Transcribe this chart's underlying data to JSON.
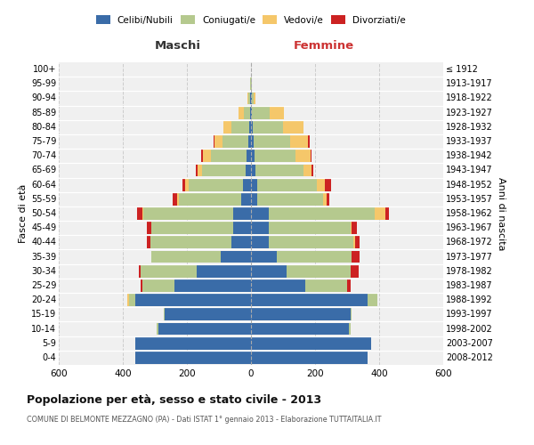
{
  "age_groups": [
    "0-4",
    "5-9",
    "10-14",
    "15-19",
    "20-24",
    "25-29",
    "30-34",
    "35-39",
    "40-44",
    "45-49",
    "50-54",
    "55-59",
    "60-64",
    "65-69",
    "70-74",
    "75-79",
    "80-84",
    "85-89",
    "90-94",
    "95-99",
    "100+"
  ],
  "birth_years": [
    "2008-2012",
    "2003-2007",
    "1998-2002",
    "1993-1997",
    "1988-1992",
    "1983-1987",
    "1978-1982",
    "1973-1977",
    "1968-1972",
    "1963-1967",
    "1958-1962",
    "1953-1957",
    "1948-1952",
    "1943-1947",
    "1938-1942",
    "1933-1937",
    "1928-1932",
    "1923-1927",
    "1918-1922",
    "1913-1917",
    "≤ 1912"
  ],
  "maschi": {
    "celibi": [
      360,
      360,
      290,
      270,
      360,
      240,
      170,
      95,
      60,
      55,
      55,
      30,
      25,
      18,
      15,
      8,
      5,
      3,
      2,
      0,
      0
    ],
    "coniugati": [
      0,
      0,
      5,
      3,
      20,
      100,
      175,
      215,
      255,
      255,
      280,
      195,
      170,
      135,
      110,
      80,
      55,
      20,
      5,
      2,
      0
    ],
    "vedovi": [
      0,
      0,
      0,
      0,
      5,
      0,
      0,
      0,
      0,
      0,
      5,
      5,
      10,
      15,
      25,
      25,
      25,
      15,
      3,
      0,
      0
    ],
    "divorziati": [
      0,
      0,
      0,
      0,
      0,
      5,
      5,
      0,
      10,
      15,
      15,
      15,
      10,
      5,
      5,
      5,
      0,
      0,
      0,
      0,
      0
    ]
  },
  "femmine": {
    "nubili": [
      365,
      375,
      305,
      310,
      365,
      170,
      110,
      80,
      55,
      55,
      55,
      20,
      20,
      15,
      10,
      8,
      5,
      3,
      2,
      0,
      0
    ],
    "coniugate": [
      0,
      0,
      5,
      5,
      30,
      130,
      200,
      235,
      265,
      255,
      330,
      205,
      185,
      150,
      130,
      115,
      95,
      55,
      5,
      2,
      0
    ],
    "vedove": [
      0,
      0,
      0,
      0,
      0,
      0,
      0,
      0,
      5,
      5,
      35,
      10,
      25,
      25,
      45,
      55,
      65,
      45,
      8,
      2,
      0
    ],
    "divorziate": [
      0,
      0,
      0,
      0,
      0,
      10,
      25,
      25,
      15,
      15,
      10,
      10,
      20,
      5,
      5,
      5,
      0,
      0,
      0,
      0,
      0
    ]
  },
  "colors": {
    "celibi": "#3a6ca8",
    "coniugati": "#b5c98e",
    "vedovi": "#f5c76a",
    "divorziati": "#cc2222"
  },
  "xlim": 600,
  "title": "Popolazione per età, sesso e stato civile - 2013",
  "subtitle": "COMUNE DI BELMONTE MEZZAGNO (PA) - Dati ISTAT 1° gennaio 2013 - Elaborazione TUTTAITALIA.IT",
  "xlabel_left": "Maschi",
  "xlabel_right": "Femmine",
  "ylabel_left": "Fasce di età",
  "ylabel_right": "Anni di nascita",
  "legend_labels": [
    "Celibi/Nubili",
    "Coniugati/e",
    "Vedovi/e",
    "Divorziati/e"
  ],
  "bg_color": "#ffffff",
  "plot_bg": "#f0f0f0",
  "grid_color": "#cccccc"
}
